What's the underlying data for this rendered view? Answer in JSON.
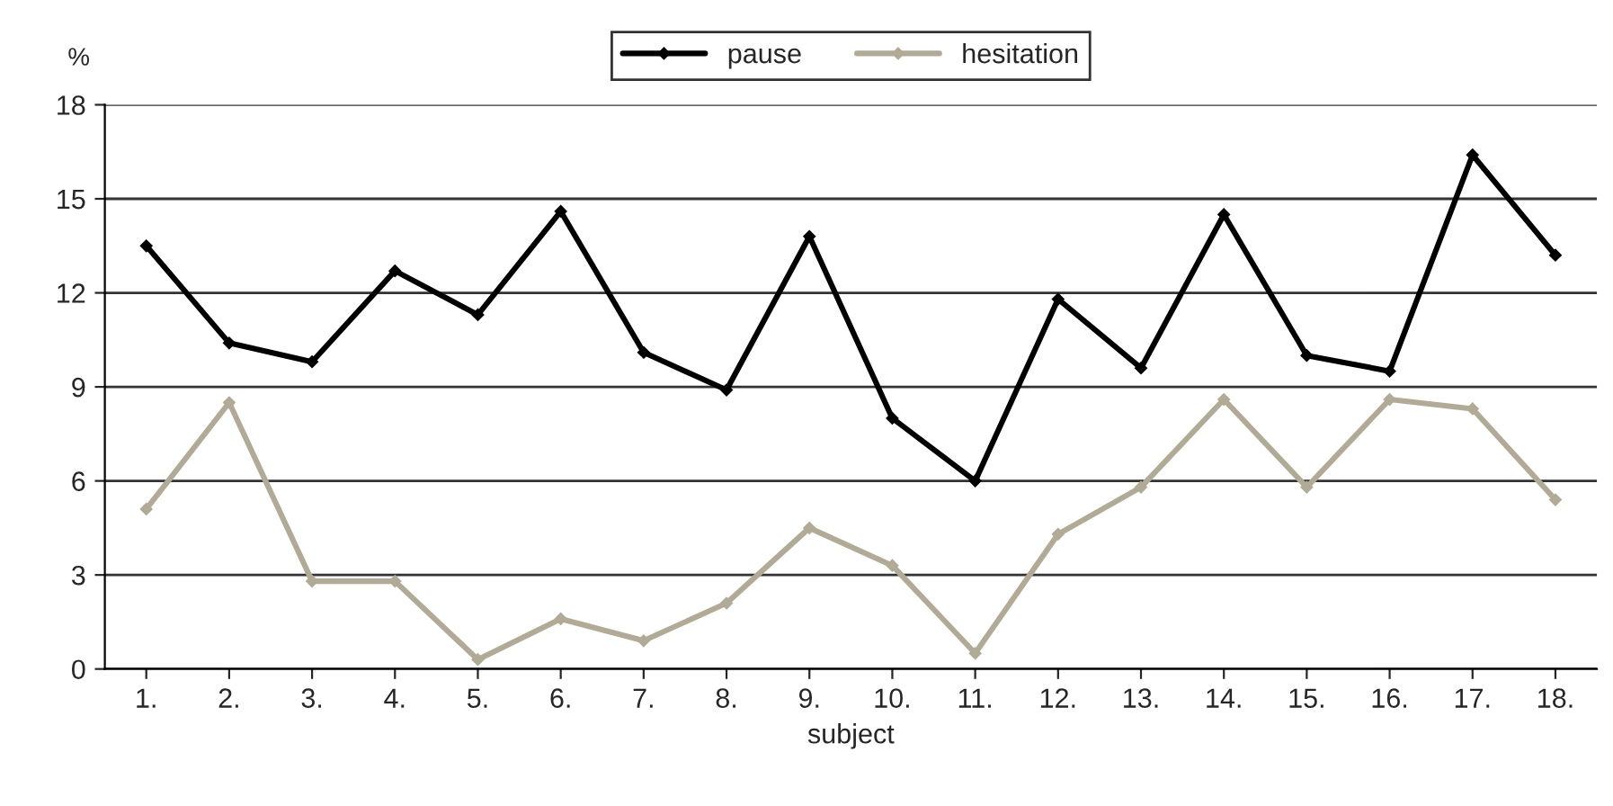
{
  "chart_data": {
    "type": "line",
    "xlabel": "subject",
    "ylabel": "%",
    "categories": [
      "1.",
      "2.",
      "3.",
      "4.",
      "5.",
      "6.",
      "7.",
      "8.",
      "9.",
      "10.",
      "11.",
      "12.",
      "13.",
      "14.",
      "15.",
      "16.",
      "17.",
      "18."
    ],
    "series": [
      {
        "name": "pause",
        "color": "#000000",
        "values": [
          13.5,
          10.4,
          9.8,
          12.7,
          11.3,
          14.6,
          10.1,
          8.9,
          13.8,
          8.0,
          6.0,
          11.8,
          9.6,
          14.5,
          10.0,
          9.5,
          16.4,
          13.2
        ]
      },
      {
        "name": "hesitation",
        "color": "#b0aa96",
        "values": [
          5.1,
          8.5,
          2.8,
          2.8,
          0.3,
          1.6,
          0.9,
          2.1,
          4.5,
          3.3,
          0.5,
          4.3,
          5.8,
          8.6,
          5.8,
          8.6,
          8.3,
          5.4
        ]
      }
    ],
    "ylim": [
      0,
      18
    ],
    "yticks": [
      0,
      3,
      6,
      9,
      12,
      15,
      18
    ],
    "grid": "y",
    "legend": "top",
    "marker": "diamond",
    "line_style": "solid"
  }
}
